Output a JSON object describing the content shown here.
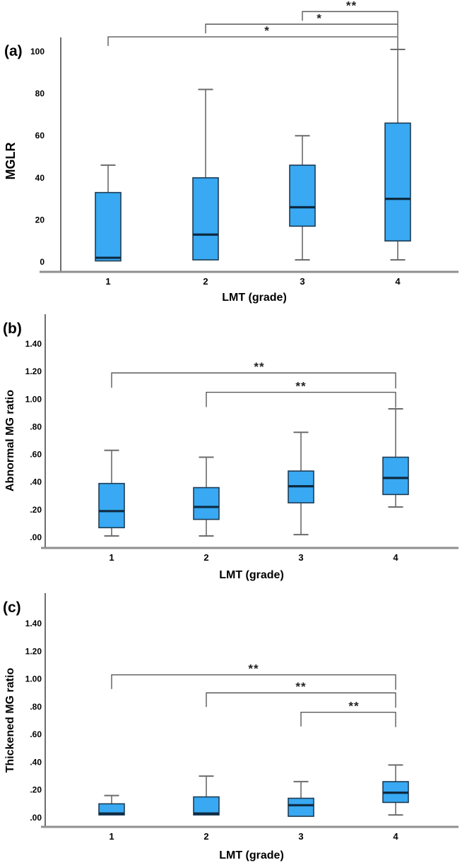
{
  "figure": {
    "background": "#ffffff"
  },
  "colors": {
    "box_fill": "#38a9f2",
    "box_border": "#1e3c55",
    "median": "#0e2a40",
    "whisker": "#6b6b6b",
    "bracket": "#5a5a5a",
    "axis": "#4a4a4a",
    "baseline": "#8f8f8f",
    "text": "#000000"
  },
  "chart_data": [
    {
      "id": "a",
      "panel_label": "(a)",
      "type": "box",
      "xlabel": "LMT (grade)",
      "ylabel": "MGLR",
      "categories": [
        "1",
        "2",
        "3",
        "4"
      ],
      "yticks": [
        0,
        20,
        40,
        60,
        80,
        100
      ],
      "ytick_labels": [
        "0",
        "20",
        "40",
        "60",
        "80",
        "100"
      ],
      "ylim": [
        0,
        105
      ],
      "grid": false,
      "legend": false,
      "boxes": [
        {
          "min": 0.5,
          "q1": 0.5,
          "median": 2,
          "q3": 33,
          "max": 46
        },
        {
          "min": 1,
          "q1": 1,
          "median": 13,
          "q3": 40,
          "max": 82
        },
        {
          "min": 1,
          "q1": 17,
          "median": 26,
          "q3": 46,
          "max": 60
        },
        {
          "min": 1,
          "q1": 10,
          "median": 30,
          "q3": 66,
          "max": 101
        }
      ],
      "significance": [
        {
          "groups": [
            "1",
            "4"
          ],
          "label": "*",
          "y": 107
        },
        {
          "groups": [
            "2",
            "4"
          ],
          "label": "*",
          "y": 113
        },
        {
          "groups": [
            "3",
            "4"
          ],
          "label": "**",
          "y": 119
        }
      ]
    },
    {
      "id": "b",
      "panel_label": "(b)",
      "type": "box",
      "xlabel": "LMT (grade)",
      "ylabel": "Abnormal MG ratio",
      "categories": [
        "1",
        "2",
        "3",
        "4"
      ],
      "yticks": [
        0,
        0.2,
        0.4,
        0.6,
        0.8,
        1.0,
        1.2,
        1.4
      ],
      "ytick_labels": [
        ".00",
        ".20",
        ".40",
        ".60",
        ".80",
        "1.00",
        "1.20",
        "1.40"
      ],
      "ylim": [
        0,
        1.4
      ],
      "grid": false,
      "legend": false,
      "boxes": [
        {
          "min": 0.01,
          "q1": 0.07,
          "median": 0.19,
          "q3": 0.39,
          "max": 0.63
        },
        {
          "min": 0.01,
          "q1": 0.13,
          "median": 0.22,
          "q3": 0.36,
          "max": 0.58
        },
        {
          "min": 0.02,
          "q1": 0.25,
          "median": 0.37,
          "q3": 0.48,
          "max": 0.76
        },
        {
          "min": 0.22,
          "q1": 0.31,
          "median": 0.43,
          "q3": 0.58,
          "max": 0.93
        }
      ],
      "significance": [
        {
          "groups": [
            "1",
            "4"
          ],
          "label": "**",
          "y": 1.19
        },
        {
          "groups": [
            "2",
            "4"
          ],
          "label": "**",
          "y": 1.05
        }
      ]
    },
    {
      "id": "c",
      "panel_label": "(c)",
      "type": "box",
      "xlabel": "LMT (grade)",
      "ylabel": "Thickened MG ratio",
      "categories": [
        "1",
        "2",
        "3",
        "4"
      ],
      "yticks": [
        0,
        0.2,
        0.4,
        0.6,
        0.8,
        1.0,
        1.2,
        1.4
      ],
      "ytick_labels": [
        ".00",
        ".20",
        ".40",
        ".60",
        ".80",
        "1.00",
        "1.20",
        "1.40"
      ],
      "ylim": [
        0,
        1.4
      ],
      "grid": false,
      "legend": false,
      "boxes": [
        {
          "min": 0.02,
          "q1": 0.02,
          "median": 0.03,
          "q3": 0.1,
          "max": 0.16
        },
        {
          "min": 0.02,
          "q1": 0.02,
          "median": 0.03,
          "q3": 0.15,
          "max": 0.3
        },
        {
          "min": 0.01,
          "q1": 0.01,
          "median": 0.09,
          "q3": 0.14,
          "max": 0.26
        },
        {
          "min": 0.02,
          "q1": 0.11,
          "median": 0.18,
          "q3": 0.26,
          "max": 0.38
        }
      ],
      "significance": [
        {
          "groups": [
            "1",
            "4"
          ],
          "label": "**",
          "y": 1.03
        },
        {
          "groups": [
            "2",
            "4"
          ],
          "label": "**",
          "y": 0.9
        },
        {
          "groups": [
            "3",
            "4"
          ],
          "label": "**",
          "y": 0.76
        }
      ]
    }
  ]
}
